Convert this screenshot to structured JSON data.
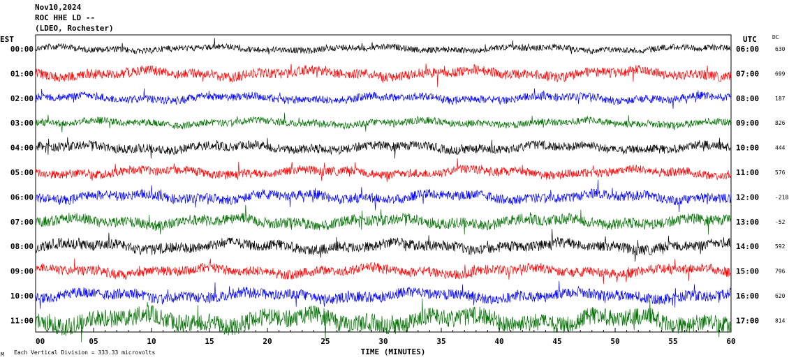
{
  "header": {
    "date": "Nov10,2024",
    "station": "ROC HHE LD --",
    "network": "(LDEO, Rochester)"
  },
  "left_axis_title": "EST",
  "right_axis_title": "UTC",
  "dc_title": "DC",
  "x_axis_label": "TIME (MINUTES)",
  "footer": {
    "note": "Each Vertical Division = 333.33 microvolts",
    "mark": "M"
  },
  "colors": {
    "black": "#000000",
    "red": "#ff0000",
    "blue": "#0000ff",
    "green": "#007000"
  },
  "chart_data": {
    "type": "line",
    "title": "",
    "xlabel": "TIME (MINUTES)",
    "ylabel": "",
    "xlim": [
      0,
      60
    ],
    "x_ticks": [
      "00",
      "05",
      "10",
      "15",
      "20",
      "25",
      "30",
      "35",
      "40",
      "45",
      "50",
      "55",
      "60"
    ],
    "grid": false,
    "legend": "none",
    "rows": [
      {
        "est": "00:00",
        "utc": "06:00",
        "dc": "630",
        "color": "black",
        "amplitude": 0.35
      },
      {
        "est": "01:00",
        "utc": "07:00",
        "dc": "699",
        "color": "red",
        "amplitude": 0.55
      },
      {
        "est": "02:00",
        "utc": "08:00",
        "dc": "187",
        "color": "blue",
        "amplitude": 0.45
      },
      {
        "est": "03:00",
        "utc": "09:00",
        "dc": "826",
        "color": "green",
        "amplitude": 0.4
      },
      {
        "est": "04:00",
        "utc": "10:00",
        "dc": "444",
        "color": "black",
        "amplitude": 0.5
      },
      {
        "est": "05:00",
        "utc": "11:00",
        "dc": "576",
        "color": "red",
        "amplitude": 0.5
      },
      {
        "est": "06:00",
        "utc": "12:00",
        "dc": "-218",
        "color": "blue",
        "amplitude": 0.55
      },
      {
        "est": "07:00",
        "utc": "13:00",
        "dc": "-52",
        "color": "green",
        "amplitude": 0.6
      },
      {
        "est": "08:00",
        "utc": "14:00",
        "dc": "592",
        "color": "black",
        "amplitude": 0.6
      },
      {
        "est": "09:00",
        "utc": "15:00",
        "dc": "796",
        "color": "red",
        "amplitude": 0.55
      },
      {
        "est": "10:00",
        "utc": "16:00",
        "dc": "620",
        "color": "blue",
        "amplitude": 0.6
      },
      {
        "est": "11:00",
        "utc": "17:00",
        "dc": "814",
        "color": "green",
        "amplitude": 1.0
      }
    ]
  }
}
